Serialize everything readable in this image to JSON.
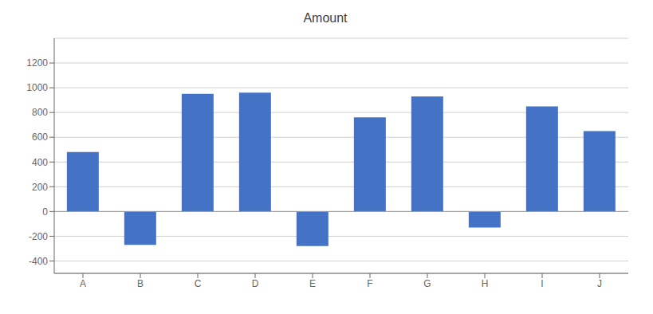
{
  "chart_data": {
    "type": "bar",
    "title": "Amount",
    "categories": [
      "A",
      "B",
      "C",
      "D",
      "E",
      "F",
      "G",
      "H",
      "I",
      "J"
    ],
    "values": [
      480,
      -270,
      950,
      960,
      -280,
      760,
      930,
      -130,
      850,
      650
    ],
    "color": "#4472C4",
    "ylim": [
      -500,
      1400
    ],
    "yticks": [
      -400,
      -200,
      0,
      200,
      400,
      600,
      800,
      1000,
      1200
    ],
    "grid": true
  }
}
